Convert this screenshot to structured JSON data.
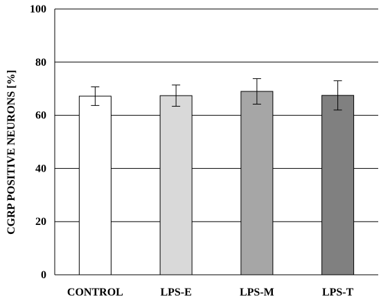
{
  "chart_data": {
    "type": "bar",
    "title": "",
    "xlabel": "",
    "ylabel": "CGRP POSITIVE  NEURONS [%]",
    "ylim": [
      0,
      100
    ],
    "yticks": [
      "0",
      "20",
      "40",
      "60",
      "80",
      "100"
    ],
    "grid": true,
    "categories": [
      "CONTROL",
      "LPS-E",
      "LPS-M",
      "LPS-T"
    ],
    "values": [
      67.2,
      67.4,
      69.0,
      67.5
    ],
    "errors": [
      3.5,
      4.0,
      4.8,
      5.5
    ],
    "colors": [
      "#ffffff",
      "#d9d9d9",
      "#a6a6a6",
      "#808080"
    ]
  }
}
